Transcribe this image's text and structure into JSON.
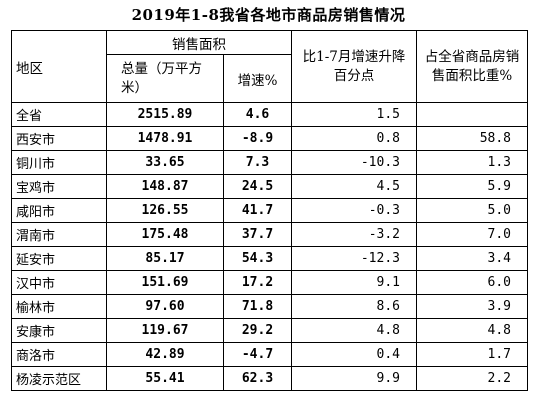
{
  "title": "2019年1-8我省各地市商品房销售情况",
  "headers": {
    "region": "地区",
    "sales_area": "销售面积",
    "total": "总量（万平方米）",
    "growth": "增速%",
    "change": "比1-7月增速升降百分点",
    "share": "占全省商品房销售面积比重%"
  },
  "rows": [
    {
      "region": "全省",
      "total": "2515.89",
      "growth": "4.6",
      "change": "1.5",
      "share": ""
    },
    {
      "region": "西安市",
      "total": "1478.91",
      "growth": "-8.9",
      "change": "0.8",
      "share": "58.8"
    },
    {
      "region": "铜川市",
      "total": "33.65",
      "growth": "7.3",
      "change": "-10.3",
      "share": "1.3"
    },
    {
      "region": "宝鸡市",
      "total": "148.87",
      "growth": "24.5",
      "change": "4.5",
      "share": "5.9"
    },
    {
      "region": "咸阳市",
      "total": "126.55",
      "growth": "41.7",
      "change": "-0.3",
      "share": "5.0"
    },
    {
      "region": "渭南市",
      "total": "175.48",
      "growth": "37.7",
      "change": "-3.2",
      "share": "7.0"
    },
    {
      "region": "延安市",
      "total": "85.17",
      "growth": "54.3",
      "change": "-12.3",
      "share": "3.4"
    },
    {
      "region": "汉中市",
      "total": "151.69",
      "growth": "17.2",
      "change": "9.1",
      "share": "6.0"
    },
    {
      "region": "榆林市",
      "total": "97.60",
      "growth": "71.8",
      "change": "8.6",
      "share": "3.9"
    },
    {
      "region": "安康市",
      "total": "119.67",
      "growth": "29.2",
      "change": "4.8",
      "share": "4.8"
    },
    {
      "region": "商洛市",
      "total": "42.89",
      "growth": "-4.7",
      "change": "0.4",
      "share": "1.7"
    },
    {
      "region": "杨凌示范区",
      "total": "55.41",
      "growth": "62.3",
      "change": "9.9",
      "share": "2.2"
    }
  ]
}
